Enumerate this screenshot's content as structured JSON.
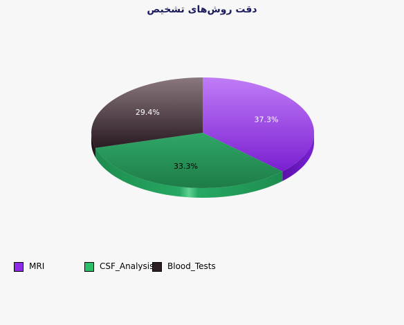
{
  "chart_data": {
    "type": "pie",
    "title": "دقت روش‌های تشخیص",
    "categories": [
      "MRI",
      "CSF_Analysis",
      "Blood_Tests"
    ],
    "values": [
      37.3,
      33.3,
      29.4
    ],
    "labels": [
      "37.3%",
      "33.3%",
      "29.4%"
    ],
    "colors": [
      "#8f2be8",
      "#2bbf6a",
      "#2e1f26"
    ],
    "legend_position": "bottom-left"
  }
}
